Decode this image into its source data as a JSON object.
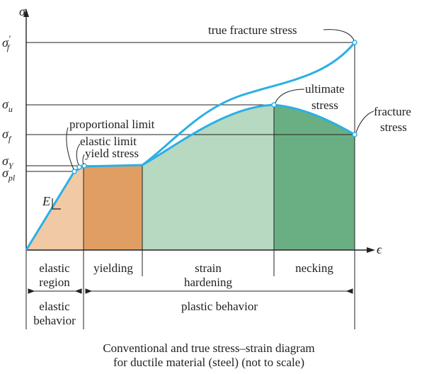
{
  "axes": {
    "y_symbol": "σ",
    "x_symbol": "ϵ"
  },
  "stress_levels": {
    "true_fracture": {
      "base": "σ",
      "sub": "f",
      "prime": "′"
    },
    "ultimate": {
      "base": "σ",
      "sub": "u"
    },
    "fracture": {
      "base": "σ",
      "sub": "f"
    },
    "yield": {
      "base": "σ",
      "sub": "Y"
    },
    "proportional": {
      "base": "σ",
      "sub": "pl"
    }
  },
  "annotations": {
    "true_fracture_stress": "true fracture stress",
    "ultimate_line1": "ultimate",
    "ultimate_line2": "stress",
    "fracture_line1": "fracture",
    "fracture_line2": "stress",
    "proportional_limit": "proportional limit",
    "elastic_limit": "elastic limit",
    "yield_stress": "yield stress",
    "modulus_symbol": "E"
  },
  "regions": {
    "elastic": {
      "line1": "elastic",
      "line2": "region"
    },
    "yielding": {
      "line1": "yielding"
    },
    "strain_hardening": {
      "line1": "strain",
      "line2": "hardening"
    },
    "necking": {
      "line1": "necking"
    }
  },
  "behaviors": {
    "elastic": {
      "line1": "elastic",
      "line2": "behavior"
    },
    "plastic": {
      "line1": "plastic behavior"
    }
  },
  "caption": {
    "line1": "Conventional and true stress–strain diagram",
    "line2": "for ductile material (steel) (not to scale)"
  },
  "colors": {
    "curve": "#2ab0e4",
    "elastic_fill": "#f1c9a5",
    "yielding_fill": "#e09e63",
    "hardening_fill": "#b7d8c1",
    "necking_fill": "#6aaf83",
    "axis": "#222222"
  }
}
